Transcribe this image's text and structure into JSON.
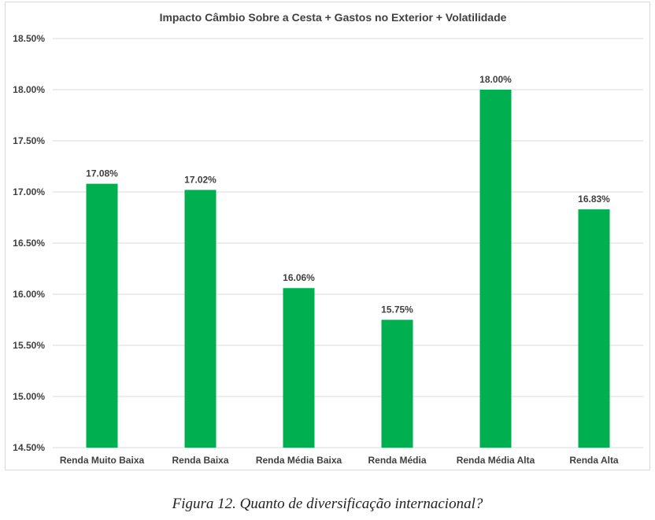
{
  "chart_data": {
    "type": "bar",
    "title": "Impacto Câmbio Sobre a Cesta + Gastos no Exterior + Volatilidade",
    "categories": [
      "Renda Muito Baixa",
      "Renda Baixa",
      "Renda Média Baixa",
      "Renda Média",
      "Renda Média Alta",
      "Renda Alta"
    ],
    "values": [
      17.08,
      17.02,
      16.06,
      15.75,
      18.0,
      16.83
    ],
    "data_labels": [
      "17.08%",
      "17.02%",
      "16.06%",
      "15.75%",
      "18.00%",
      "16.83%"
    ],
    "xlabel": "",
    "ylabel": "",
    "ylim": [
      14.5,
      18.5
    ],
    "yticks": [
      14.5,
      15.0,
      15.5,
      16.0,
      16.5,
      17.0,
      17.5,
      18.0,
      18.5
    ],
    "ytick_labels": [
      "14.50%",
      "15.00%",
      "15.50%",
      "16.00%",
      "16.50%",
      "17.00%",
      "17.50%",
      "18.00%",
      "18.50%"
    ],
    "grid": true,
    "legend": "none",
    "bar_color": "#00b050",
    "grid_color": "#d9d9d9"
  },
  "caption": "Figura 12. Quanto de diversificação internacional?"
}
